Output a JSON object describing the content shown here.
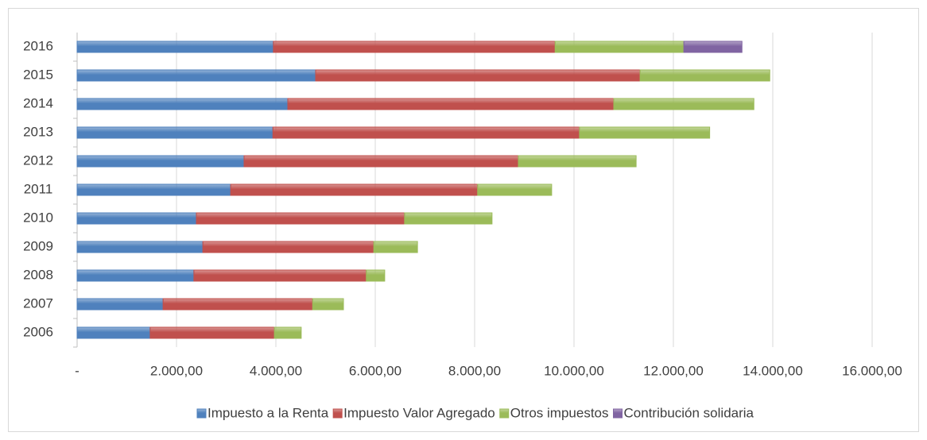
{
  "chart_data": {
    "type": "stacked_barh",
    "categories": [
      "2006",
      "2007",
      "2008",
      "2009",
      "2010",
      "2011",
      "2012",
      "2013",
      "2014",
      "2015",
      "2016"
    ],
    "series": [
      {
        "name": "Impuesto a la Renta",
        "color": "#4f81bd",
        "values": [
          1470,
          1730,
          2350,
          2530,
          2400,
          3090,
          3360,
          3940,
          4240,
          4800,
          3950
        ]
      },
      {
        "name": "Impuesto Valor Agregado",
        "color": "#c0504d",
        "values": [
          2500,
          3010,
          3470,
          3440,
          4190,
          4970,
          5520,
          6170,
          6560,
          6530,
          5670
        ]
      },
      {
        "name": "Otros impuestos",
        "color": "#9bbb59",
        "values": [
          540,
          620,
          370,
          880,
          1760,
          1490,
          2370,
          2620,
          2820,
          2610,
          2590
        ]
      },
      {
        "name": "Contribución solidaria",
        "color": "#8064a2",
        "values": [
          null,
          null,
          null,
          null,
          null,
          null,
          null,
          null,
          null,
          null,
          1170
        ]
      }
    ],
    "xlim": [
      0,
      16000
    ],
    "xticks": [
      {
        "value": 0,
        "label": "-"
      },
      {
        "value": 2000,
        "label": "2.000,00"
      },
      {
        "value": 4000,
        "label": "4.000,00"
      },
      {
        "value": 6000,
        "label": "6.000,00"
      },
      {
        "value": 8000,
        "label": "8.000,00"
      },
      {
        "value": 10000,
        "label": "10.000,00"
      },
      {
        "value": 12000,
        "label": "12.000,00"
      },
      {
        "value": 14000,
        "label": "14.000,00"
      },
      {
        "value": 16000,
        "label": "16.000,00"
      }
    ],
    "grid": true,
    "legend": "bottom"
  }
}
